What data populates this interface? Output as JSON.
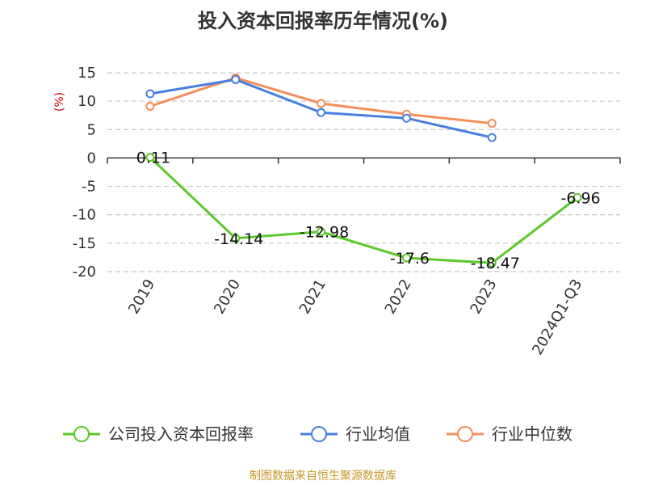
{
  "chart_data": {
    "type": "line",
    "title": "投入资本回报率历年情况(%)",
    "ylabel": "(%)",
    "xlabel": "",
    "ylim": [
      -20,
      15
    ],
    "yticks": [
      15,
      10,
      5,
      0,
      -5,
      -10,
      -15,
      -20
    ],
    "categories": [
      "2019",
      "2020",
      "2021",
      "2022",
      "2023",
      "2024Q1-Q3"
    ],
    "grid": true,
    "legend_position": "bottom",
    "series": [
      {
        "name": "公司投入资本回报率",
        "color": "#5cc82a",
        "values": [
          0.11,
          -14.14,
          -12.98,
          -17.6,
          -18.47,
          -6.96
        ],
        "labels": [
          "0.11",
          "-14.14",
          "-12.98",
          "-17.6",
          "-18.47",
          "-6.96"
        ]
      },
      {
        "name": "行业均值",
        "color": "#4a7fe0",
        "values": [
          11.3,
          13.8,
          8.0,
          7.0,
          3.6,
          null
        ]
      },
      {
        "name": "行业中位数",
        "color": "#f58e5a",
        "values": [
          9.1,
          14.1,
          9.6,
          7.7,
          6.1,
          null
        ]
      }
    ]
  },
  "footer": {
    "source": "制图数据来自恒生聚源数据库"
  }
}
